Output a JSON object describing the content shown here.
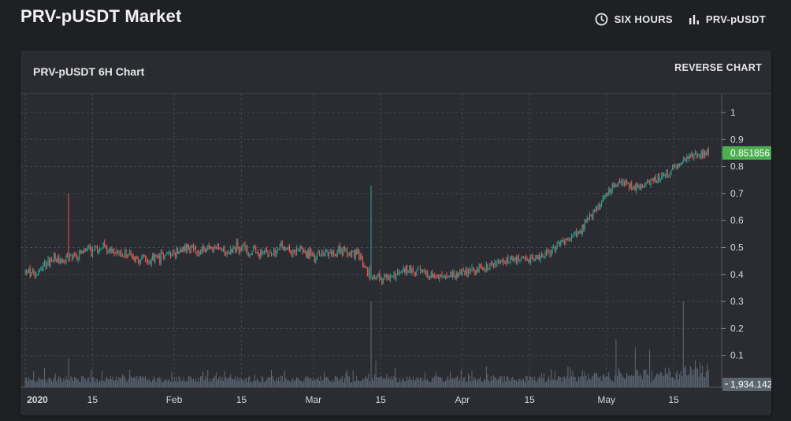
{
  "header": {
    "title": "PRV-pUSDT Market",
    "interval_label": "SIX HOURS",
    "pair_label": "PRV-pUSDT",
    "interval_icon": "clock-icon",
    "pair_icon": "bar-chart-icon"
  },
  "chart_card": {
    "title": "PRV-pUSDT 6H Chart",
    "reverse_label": "REVERSE CHART"
  },
  "chart_data": {
    "type": "candlestick",
    "title": "PRV-pUSDT 6H Chart",
    "y_ticks": [
      "1",
      "0.9",
      "0.8",
      "0.7",
      "0.6",
      "0.5",
      "0.4",
      "0.3",
      "0.2",
      "0.1"
    ],
    "ylim": [
      0,
      1.05
    ],
    "x_ticks": [
      {
        "label": "2020",
        "day": 0
      },
      {
        "label": "15",
        "day": 14
      },
      {
        "label": "Feb",
        "day": 31
      },
      {
        "label": "15",
        "day": 45
      },
      {
        "label": "Mar",
        "day": 60
      },
      {
        "label": "15",
        "day": 74
      },
      {
        "label": "Apr",
        "day": 91
      },
      {
        "label": "15",
        "day": 105
      },
      {
        "label": "May",
        "day": 121
      },
      {
        "label": "15",
        "day": 135
      }
    ],
    "xlim": [
      -1,
      145
    ],
    "last_price_label": "0.851856",
    "last_price": 0.851856,
    "volume_label": "1,934.142",
    "up_color": "#26a69a",
    "down_color": "#ef5350",
    "volume_color": "#5f6b78",
    "last_price_color": "#4caf50",
    "grid": true,
    "price_path": [
      [
        0,
        0.41
      ],
      [
        2,
        0.4
      ],
      [
        4,
        0.44
      ],
      [
        6,
        0.46
      ],
      [
        8,
        0.45
      ],
      [
        10,
        0.47
      ],
      [
        12,
        0.48
      ],
      [
        14,
        0.49
      ],
      [
        16,
        0.5
      ],
      [
        18,
        0.49
      ],
      [
        20,
        0.48
      ],
      [
        22,
        0.47
      ],
      [
        24,
        0.46
      ],
      [
        26,
        0.45
      ],
      [
        28,
        0.46
      ],
      [
        30,
        0.48
      ],
      [
        32,
        0.49
      ],
      [
        34,
        0.5
      ],
      [
        36,
        0.49
      ],
      [
        38,
        0.5
      ],
      [
        40,
        0.49
      ],
      [
        42,
        0.49
      ],
      [
        44,
        0.5
      ],
      [
        46,
        0.49
      ],
      [
        48,
        0.48
      ],
      [
        50,
        0.48
      ],
      [
        52,
        0.49
      ],
      [
        54,
        0.5
      ],
      [
        56,
        0.49
      ],
      [
        58,
        0.48
      ],
      [
        60,
        0.47
      ],
      [
        62,
        0.48
      ],
      [
        64,
        0.49
      ],
      [
        66,
        0.49
      ],
      [
        68,
        0.48
      ],
      [
        70,
        0.46
      ],
      [
        71,
        0.42
      ],
      [
        72,
        0.39
      ],
      [
        73,
        0.4
      ],
      [
        74,
        0.38
      ],
      [
        76,
        0.39
      ],
      [
        78,
        0.41
      ],
      [
        80,
        0.42
      ],
      [
        82,
        0.41
      ],
      [
        84,
        0.4
      ],
      [
        86,
        0.39
      ],
      [
        88,
        0.39
      ],
      [
        90,
        0.4
      ],
      [
        92,
        0.41
      ],
      [
        94,
        0.42
      ],
      [
        96,
        0.43
      ],
      [
        98,
        0.44
      ],
      [
        100,
        0.45
      ],
      [
        102,
        0.45
      ],
      [
        104,
        0.45
      ],
      [
        106,
        0.46
      ],
      [
        108,
        0.47
      ],
      [
        110,
        0.49
      ],
      [
        112,
        0.52
      ],
      [
        114,
        0.54
      ],
      [
        116,
        0.57
      ],
      [
        118,
        0.62
      ],
      [
        120,
        0.67
      ],
      [
        122,
        0.72
      ],
      [
        124,
        0.74
      ],
      [
        126,
        0.73
      ],
      [
        128,
        0.72
      ],
      [
        130,
        0.74
      ],
      [
        132,
        0.76
      ],
      [
        134,
        0.78
      ],
      [
        136,
        0.81
      ],
      [
        138,
        0.83
      ],
      [
        140,
        0.85
      ],
      [
        142,
        0.852
      ]
    ],
    "price_spikes": [
      {
        "day": 9,
        "high": 0.7
      },
      {
        "day": 72,
        "high": 0.73
      },
      {
        "day": 137,
        "high": 0.84
      }
    ],
    "volume_spikes": [
      {
        "day": 9,
        "value": 0.09
      },
      {
        "day": 72,
        "value": 0.3
      },
      {
        "day": 73,
        "value": 0.08
      },
      {
        "day": 123,
        "value": 0.16
      },
      {
        "day": 127,
        "value": 0.13
      },
      {
        "day": 130,
        "value": 0.12
      },
      {
        "day": 137,
        "value": 0.3
      }
    ]
  }
}
